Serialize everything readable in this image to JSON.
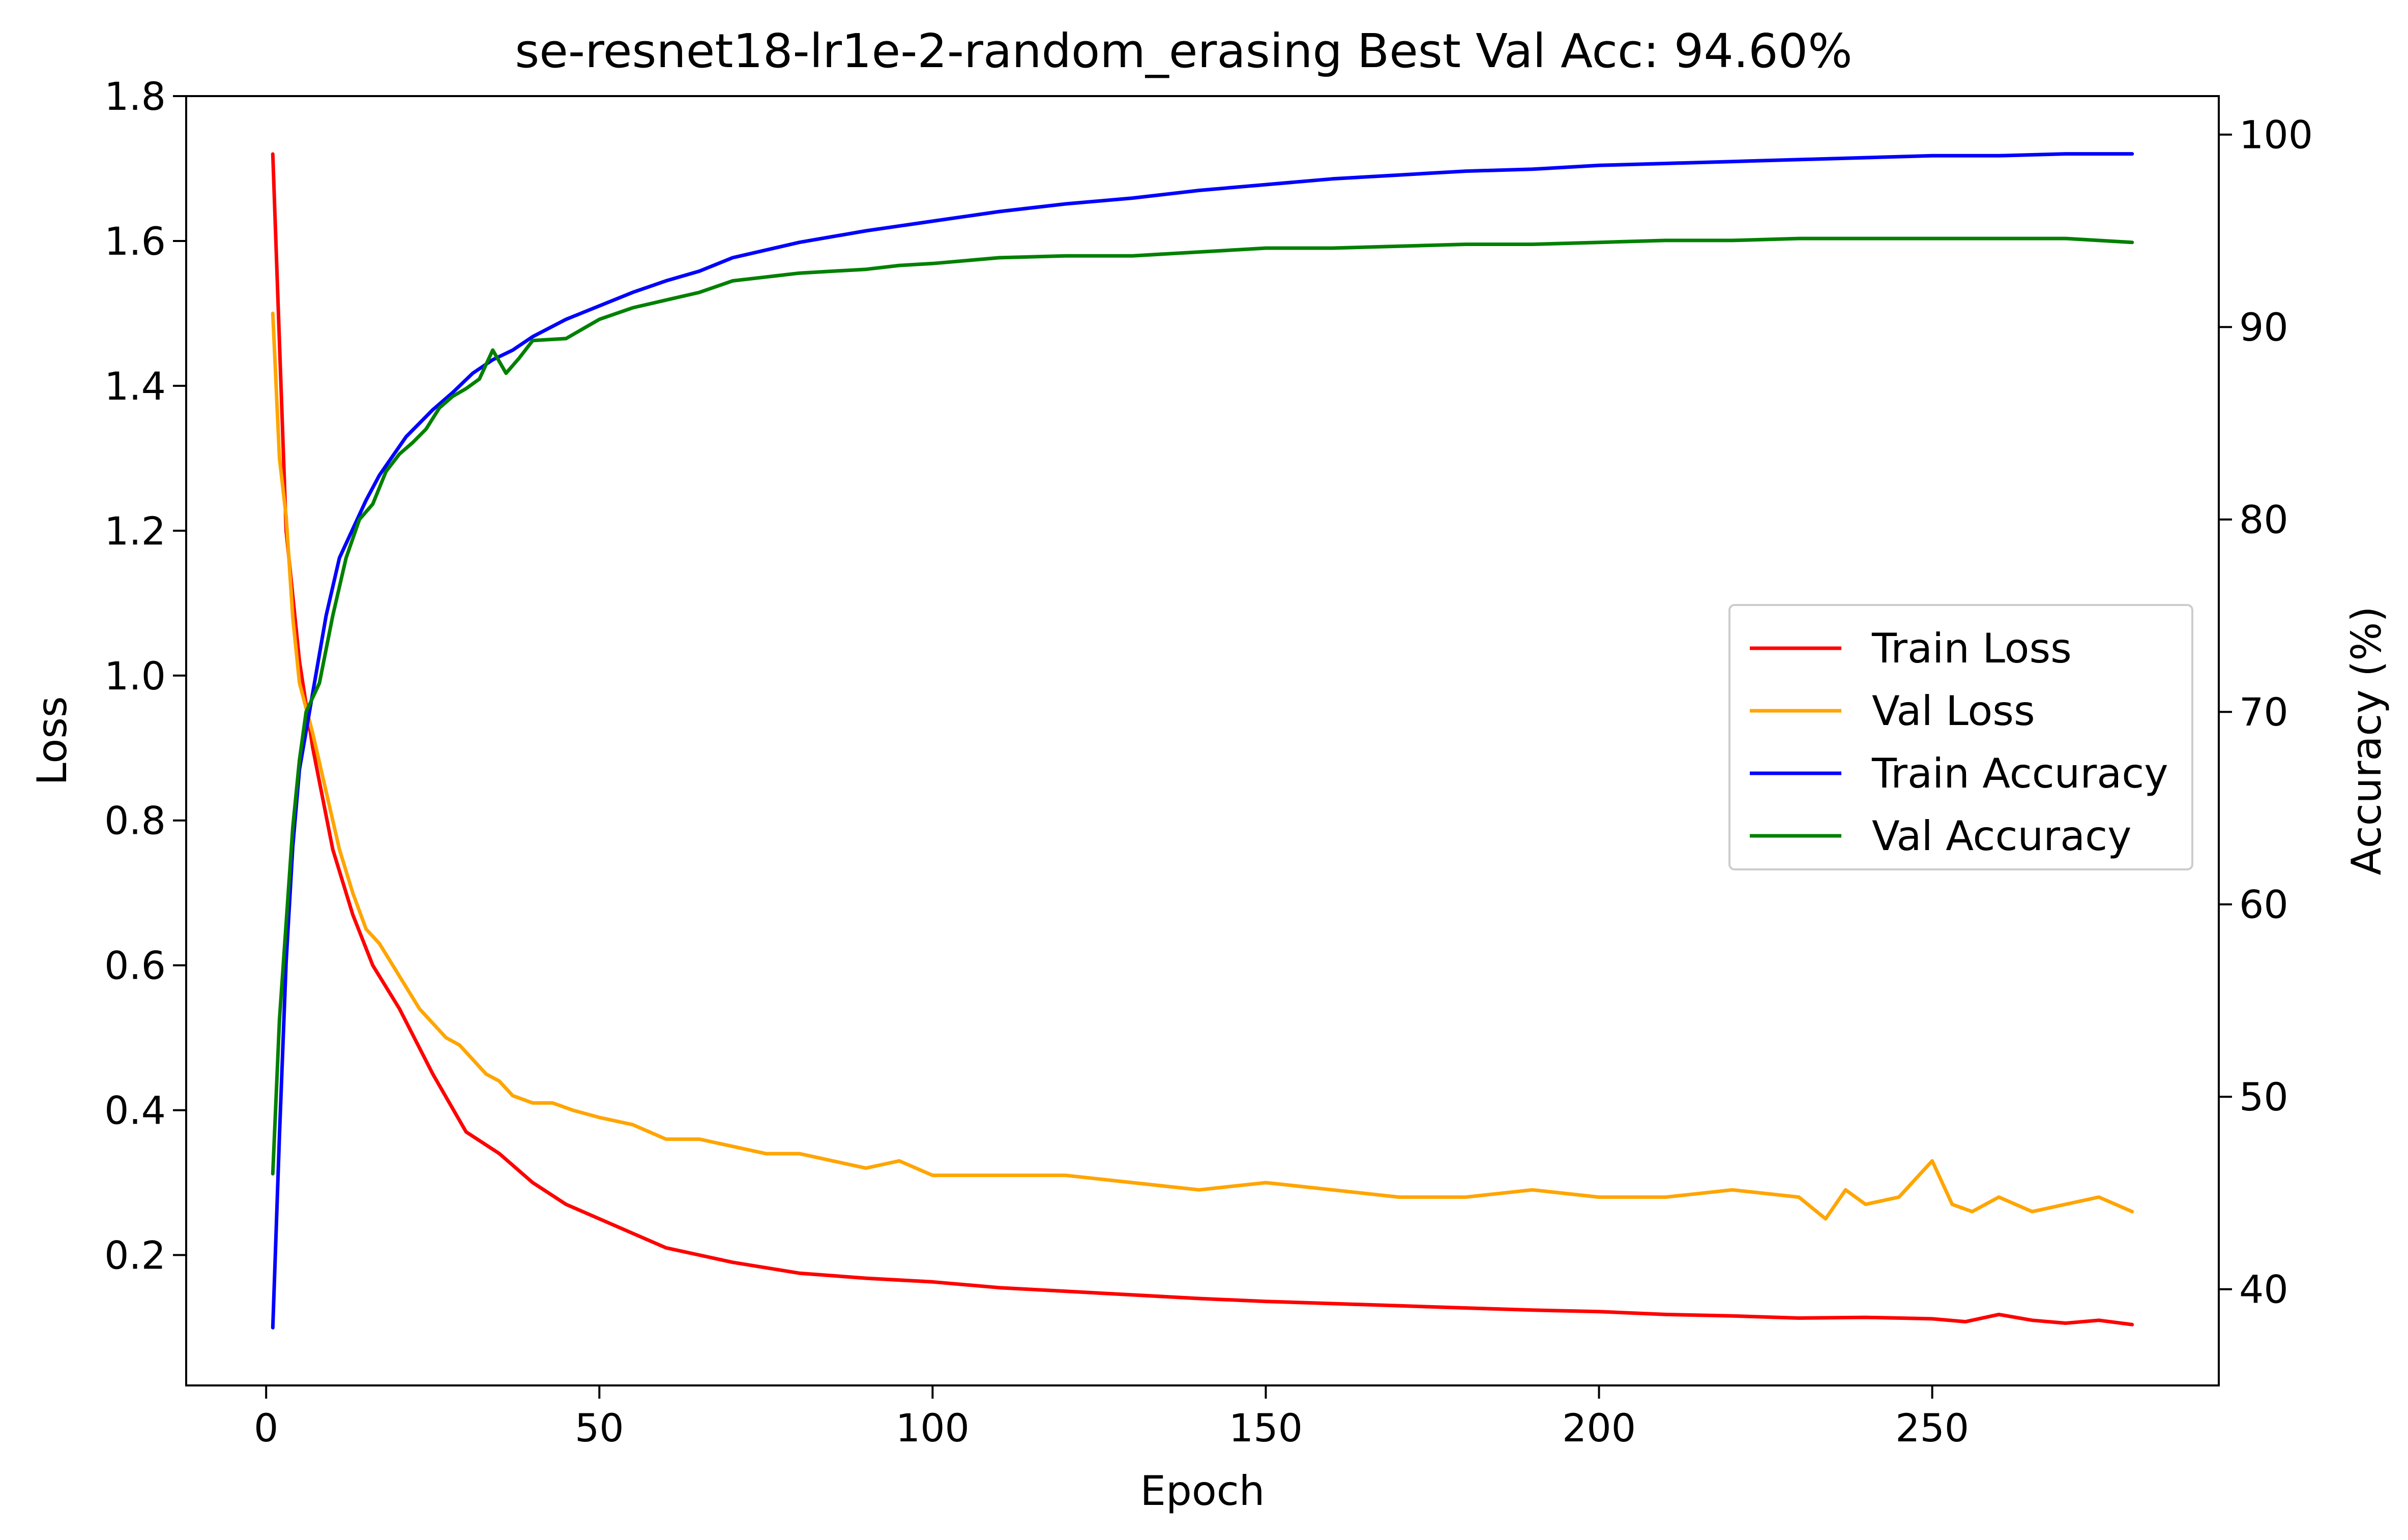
{
  "chart_data": {
    "type": "line",
    "title": "se-resnet18-lr1e-2-random_erasing Best Val Acc: 94.60%",
    "xlabel": "Epoch",
    "ylabel_left": "Loss",
    "ylabel_right": "Accuracy (%)",
    "xlim": [
      -12,
      293
    ],
    "ylim_left": [
      0.02,
      1.8
    ],
    "ylim_right": [
      35,
      102
    ],
    "x_ticks": [
      0,
      50,
      100,
      150,
      200,
      250
    ],
    "x_tick_labels": [
      "0",
      "50",
      "100",
      "150",
      "200",
      "250"
    ],
    "y_left_ticks": [
      0.2,
      0.4,
      0.6,
      0.8,
      1.0,
      1.2,
      1.4,
      1.6,
      1.8
    ],
    "y_left_tick_labels": [
      "0.2",
      "0.4",
      "0.6",
      "0.8",
      "1.0",
      "1.2",
      "1.4",
      "1.6",
      "1.8"
    ],
    "y_right_ticks": [
      40,
      50,
      60,
      70,
      80,
      90,
      100
    ],
    "y_right_tick_labels": [
      "40",
      "50",
      "60",
      "70",
      "80",
      "90",
      "100"
    ],
    "grid": false,
    "legend_position": "center-right",
    "series": [
      {
        "name": "Train Loss",
        "axis": "left",
        "color": "#ff0000",
        "x": [
          1,
          3,
          5,
          7,
          10,
          13,
          16,
          20,
          25,
          30,
          35,
          40,
          45,
          50,
          55,
          60,
          70,
          80,
          90,
          100,
          110,
          120,
          130,
          140,
          150,
          160,
          170,
          180,
          190,
          200,
          210,
          220,
          230,
          240,
          250,
          255,
          260,
          265,
          270,
          275,
          280
        ],
        "y": [
          1.72,
          1.2,
          1.02,
          0.9,
          0.76,
          0.67,
          0.6,
          0.54,
          0.45,
          0.37,
          0.34,
          0.3,
          0.27,
          0.25,
          0.23,
          0.21,
          0.19,
          0.175,
          0.168,
          0.163,
          0.155,
          0.15,
          0.145,
          0.14,
          0.136,
          0.133,
          0.13,
          0.127,
          0.124,
          0.122,
          0.118,
          0.116,
          0.113,
          0.114,
          0.112,
          0.108,
          0.118,
          0.11,
          0.106,
          0.11,
          0.104
        ]
      },
      {
        "name": "Val Loss",
        "axis": "left",
        "color": "#ffa500",
        "x": [
          1,
          2,
          3,
          4,
          5,
          7,
          9,
          11,
          13,
          15,
          17,
          19,
          21,
          23,
          25,
          27,
          29,
          31,
          33,
          35,
          37,
          40,
          43,
          46,
          50,
          55,
          60,
          65,
          70,
          75,
          80,
          85,
          90,
          95,
          100,
          110,
          120,
          130,
          140,
          150,
          160,
          170,
          180,
          190,
          200,
          210,
          220,
          230,
          234,
          237,
          240,
          245,
          250,
          253,
          256,
          260,
          265,
          270,
          275,
          280
        ],
        "y": [
          1.5,
          1.3,
          1.22,
          1.08,
          0.99,
          0.92,
          0.84,
          0.76,
          0.7,
          0.65,
          0.63,
          0.6,
          0.57,
          0.54,
          0.52,
          0.5,
          0.49,
          0.47,
          0.45,
          0.44,
          0.42,
          0.41,
          0.41,
          0.4,
          0.39,
          0.38,
          0.36,
          0.36,
          0.35,
          0.34,
          0.34,
          0.33,
          0.32,
          0.33,
          0.31,
          0.31,
          0.31,
          0.3,
          0.29,
          0.3,
          0.29,
          0.28,
          0.28,
          0.29,
          0.28,
          0.28,
          0.29,
          0.28,
          0.25,
          0.29,
          0.27,
          0.28,
          0.33,
          0.27,
          0.26,
          0.28,
          0.26,
          0.27,
          0.28,
          0.26
        ]
      },
      {
        "name": "Train Accuracy",
        "axis": "right",
        "color": "#0000ff",
        "x": [
          1,
          2,
          3,
          4,
          5,
          7,
          9,
          11,
          13,
          15,
          17,
          19,
          21,
          23,
          25,
          28,
          31,
          34,
          37,
          40,
          45,
          50,
          55,
          60,
          65,
          70,
          80,
          90,
          100,
          110,
          120,
          130,
          140,
          150,
          160,
          170,
          180,
          190,
          200,
          210,
          220,
          230,
          240,
          250,
          260,
          270,
          280
        ],
        "y": [
          38,
          48,
          57,
          63,
          67,
          71,
          75,
          78,
          79.5,
          81,
          82.3,
          83.3,
          84.3,
          85,
          85.7,
          86.6,
          87.6,
          88.3,
          88.8,
          89.5,
          90.4,
          91.1,
          91.8,
          92.4,
          92.9,
          93.6,
          94.4,
          95,
          95.5,
          96,
          96.4,
          96.7,
          97.1,
          97.4,
          97.7,
          97.9,
          98.1,
          98.2,
          98.4,
          98.5,
          98.6,
          98.7,
          98.8,
          98.9,
          98.9,
          99.0,
          99.0
        ]
      },
      {
        "name": "Val Accuracy",
        "axis": "right",
        "color": "#008000",
        "x": [
          1,
          2,
          3,
          4,
          5,
          6,
          8,
          10,
          12,
          14,
          16,
          18,
          20,
          22,
          24,
          26,
          28,
          30,
          32,
          34,
          36,
          38,
          40,
          45,
          50,
          55,
          60,
          65,
          70,
          75,
          80,
          85,
          90,
          95,
          100,
          110,
          120,
          130,
          140,
          150,
          160,
          170,
          180,
          190,
          200,
          210,
          220,
          230,
          240,
          250,
          260,
          270,
          280
        ],
        "y": [
          46,
          54,
          59,
          64,
          67.5,
          70,
          71.5,
          75,
          78,
          80,
          80.8,
          82.5,
          83.4,
          84,
          84.7,
          85.8,
          86.4,
          86.8,
          87.3,
          88.8,
          87.6,
          88.4,
          89.3,
          89.4,
          90.4,
          91,
          91.4,
          91.8,
          92.4,
          92.6,
          92.8,
          92.9,
          93,
          93.2,
          93.3,
          93.6,
          93.7,
          93.7,
          93.9,
          94.1,
          94.1,
          94.2,
          94.3,
          94.3,
          94.4,
          94.5,
          94.5,
          94.6,
          94.6,
          94.6,
          94.6,
          94.6,
          94.4
        ]
      }
    ]
  }
}
